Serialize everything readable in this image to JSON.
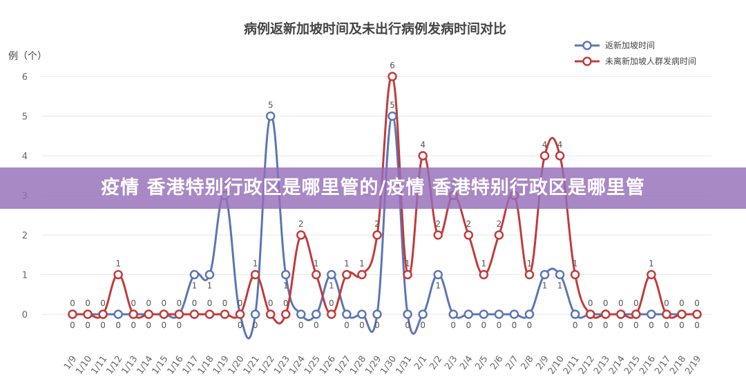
{
  "chart_data": {
    "type": "line",
    "title": "病例返新加坡时间及未出行病例发病时间对比",
    "ylabel": "例（个）",
    "xlabel": "",
    "ylim": [
      0,
      6
    ],
    "yticks": [
      0,
      1,
      2,
      3,
      4,
      5,
      6
    ],
    "grid": true,
    "legend": "top-right",
    "categories": [
      "1/9",
      "1/10",
      "1/11",
      "1/12",
      "1/13",
      "1/14",
      "1/15",
      "1/16",
      "1/17",
      "1/18",
      "1/19",
      "1/20",
      "1/21",
      "1/22",
      "1/23",
      "1/24",
      "1/25",
      "1/26",
      "1/27",
      "1/28",
      "1/29",
      "1/30",
      "1/31",
      "2/1",
      "2/2",
      "2/3",
      "2/4",
      "2/5",
      "2/6",
      "2/7",
      "2/8",
      "2/9",
      "2/10",
      "2/11",
      "2/12",
      "2/13",
      "2/14",
      "2/15",
      "2/16",
      "2/17",
      "2/18",
      "2/19"
    ],
    "series": [
      {
        "name": "返新加坡时间",
        "color": "#5b75b5",
        "values": [
          0,
          0,
          0,
          0,
          0,
          0,
          0,
          0,
          1,
          1,
          3,
          0,
          0,
          5,
          1,
          0,
          0,
          1,
          0,
          0,
          0,
          5,
          0,
          0,
          1,
          0,
          0,
          0,
          0,
          0,
          0,
          1,
          1,
          0,
          0,
          0,
          0,
          0,
          0,
          0,
          0,
          0
        ]
      },
      {
        "name": "未离新加坡人群发病时间",
        "color": "#c23a3a",
        "values": [
          0,
          0,
          0,
          1,
          0,
          0,
          0,
          0,
          0,
          0,
          0,
          0,
          1,
          0,
          0,
          2,
          1,
          0,
          1,
          1,
          2,
          6,
          1,
          4,
          2,
          3,
          2,
          1,
          2,
          3,
          1,
          4,
          4,
          1,
          0,
          0,
          0,
          0,
          1,
          0,
          0,
          0
        ]
      }
    ]
  },
  "banner": {
    "text": "疫情 香港特别行政区是哪里管的/疫情 香港特别行政区是哪里管"
  }
}
